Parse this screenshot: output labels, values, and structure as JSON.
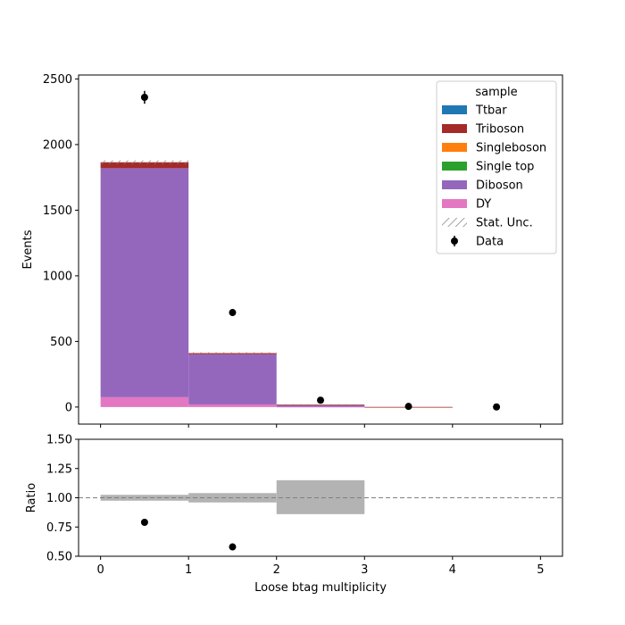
{
  "chart_data": [
    {
      "type": "bar",
      "stacked": true,
      "xlabel": "",
      "ylabel": "Events",
      "bin_edges": [
        0,
        1,
        2,
        3,
        4,
        5
      ],
      "xlim": [
        -0.25,
        5.25
      ],
      "ylim": [
        -130,
        2530
      ],
      "yticks": [
        0,
        500,
        1000,
        1500,
        2000,
        2500
      ],
      "xticks": [
        0,
        1,
        2,
        3,
        4,
        5
      ],
      "show_x_tick_labels": false,
      "grid": false,
      "legend": {
        "title": "sample",
        "placement": "top-right",
        "entries": [
          {
            "label": "Ttbar",
            "color": "#1f77b4",
            "kind": "patch"
          },
          {
            "label": "Triboson",
            "color": "#a52a2a",
            "kind": "patch"
          },
          {
            "label": "Singleboson",
            "color": "#ff7f0e",
            "kind": "patch"
          },
          {
            "label": "Single top",
            "color": "#2ca02c",
            "kind": "patch"
          },
          {
            "label": "Diboson",
            "color": "#9467bd",
            "kind": "patch"
          },
          {
            "label": "DY",
            "color": "#e377c2",
            "kind": "patch"
          },
          {
            "label": "Stat. Unc.",
            "color": "#808080",
            "kind": "hatch"
          },
          {
            "label": "Data",
            "color": "#000000",
            "kind": "errorbar"
          }
        ]
      },
      "series": [
        {
          "name": "DY",
          "color": "#e377c2",
          "values": [
            75,
            20,
            3,
            0,
            0
          ]
        },
        {
          "name": "Diboson",
          "color": "#9467bd",
          "values": [
            1745,
            382,
            13,
            0,
            0
          ]
        },
        {
          "name": "Single top",
          "color": "#2ca02c",
          "values": [
            0,
            0,
            0,
            0,
            0
          ]
        },
        {
          "name": "Singleboson",
          "color": "#ff7f0e",
          "values": [
            0,
            0,
            0,
            0,
            0
          ]
        },
        {
          "name": "Triboson",
          "color": "#a52a2a",
          "values": [
            45,
            9,
            2,
            1,
            0
          ]
        },
        {
          "name": "Ttbar",
          "color": "#1f77b4",
          "values": [
            0,
            0,
            0,
            0,
            0
          ]
        }
      ],
      "stat_unc": [
        15,
        6,
        3,
        0,
        0
      ],
      "data": {
        "name": "Data",
        "x": [
          0.5,
          1.5,
          2.5,
          3.5,
          4.5
        ],
        "y": [
          2360,
          720,
          52,
          5,
          1
        ],
        "yerr": [
          49,
          27,
          7,
          2,
          1
        ]
      }
    },
    {
      "type": "scatter",
      "xlabel": "Loose btag multiplicity",
      "ylabel": "Ratio",
      "xlim": [
        -0.25,
        5.25
      ],
      "ylim": [
        0.5,
        1.5
      ],
      "yticks": [
        0.5,
        0.75,
        1.0,
        1.25,
        1.5
      ],
      "ytick_labels": [
        "0.50",
        "0.75",
        "1.00",
        "1.25",
        "1.50"
      ],
      "xticks": [
        0,
        1,
        2,
        3,
        4,
        5
      ],
      "xtick_labels": [
        "0",
        "1",
        "2",
        "3",
        "4",
        "5"
      ],
      "reference_line": 1.0,
      "unc_bands": [
        {
          "x0": 0,
          "x1": 1,
          "lo": 0.975,
          "hi": 1.025
        },
        {
          "x0": 1,
          "x1": 2,
          "lo": 0.96,
          "hi": 1.04
        },
        {
          "x0": 2,
          "x1": 3,
          "lo": 0.86,
          "hi": 1.15
        }
      ],
      "points": {
        "x": [
          0.5,
          1.5
        ],
        "y": [
          0.79,
          0.58
        ]
      },
      "colors": {
        "band": "#b3b3b3",
        "line": "#808080",
        "points": "#000000"
      }
    }
  ]
}
